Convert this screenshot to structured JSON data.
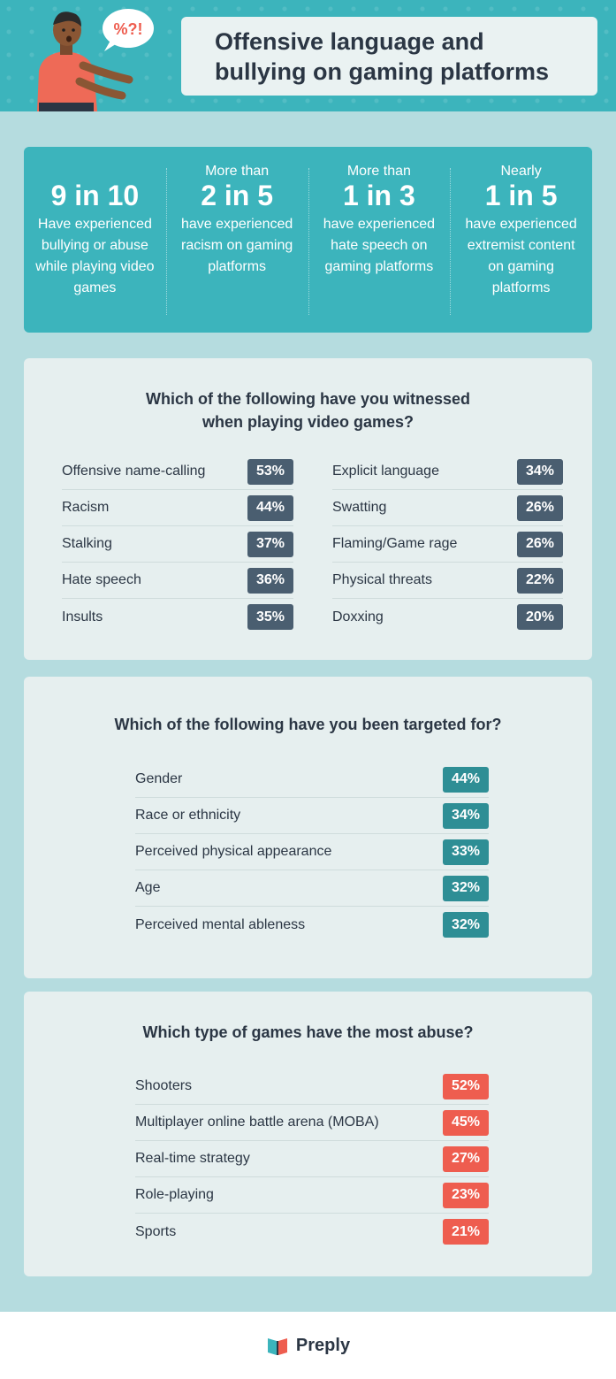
{
  "header": {
    "title": "Offensive language and\nbullying on gaming platforms",
    "speech_bubble": "%?!"
  },
  "stats": [
    {
      "pre": "",
      "big": "9 in 10",
      "desc": "Have experienced bullying or abuse while playing video games"
    },
    {
      "pre": "More than",
      "big": "2 in 5",
      "desc": "have experienced racism on gaming platforms"
    },
    {
      "pre": "More than",
      "big": "1 in 3",
      "desc": "have experienced hate speech on gaming platforms"
    },
    {
      "pre": "Nearly",
      "big": "1 in 5",
      "desc": "have experienced extremist content on gaming platforms"
    }
  ],
  "witnessed": {
    "title": "Which of the following have you witnessed\nwhen playing video games?",
    "left": [
      {
        "label": "Offensive name-calling",
        "value": "53%"
      },
      {
        "label": "Racism",
        "value": "44%"
      },
      {
        "label": "Stalking",
        "value": "37%"
      },
      {
        "label": "Hate speech",
        "value": "36%"
      },
      {
        "label": "Insults",
        "value": "35%"
      }
    ],
    "right": [
      {
        "label": "Explicit language",
        "value": "34%"
      },
      {
        "label": "Swatting",
        "value": "26%"
      },
      {
        "label": "Flaming/Game rage",
        "value": "26%"
      },
      {
        "label": "Physical threats",
        "value": "22%"
      },
      {
        "label": "Doxxing",
        "value": "20%"
      }
    ]
  },
  "targeted": {
    "title": "Which of the following have you been targeted for?",
    "rows": [
      {
        "label": "Gender",
        "value": "44%"
      },
      {
        "label": "Race or ethnicity",
        "value": "34%"
      },
      {
        "label": "Perceived physical appearance",
        "value": "33%"
      },
      {
        "label": "Age",
        "value": "32%"
      },
      {
        "label": "Perceived mental ableness",
        "value": "32%"
      }
    ]
  },
  "games": {
    "title": "Which type of games have the most abuse?",
    "rows": [
      {
        "label": "Shooters",
        "value": "52%"
      },
      {
        "label": "Multiplayer online battle arena (MOBA)",
        "value": "45%"
      },
      {
        "label": "Real-time strategy",
        "value": "27%"
      },
      {
        "label": "Role-playing",
        "value": "23%"
      },
      {
        "label": "Sports",
        "value": "21%"
      }
    ]
  },
  "footer": {
    "brand": "Preply"
  },
  "colors": {
    "header_teal": "#3cb4bc",
    "background": "#b5dcdf",
    "card": "#e6efef",
    "badge_dark": "#4a5e70",
    "badge_teal": "#2e8e95",
    "badge_red": "#ee5d4f",
    "text_dark": "#2b3644"
  }
}
